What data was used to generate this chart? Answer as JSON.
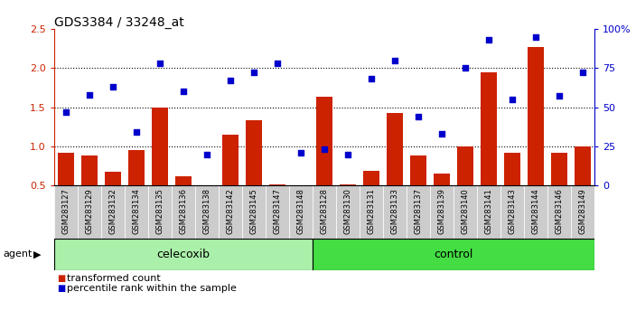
{
  "title": "GDS3384 / 33248_at",
  "samples": [
    "GSM283127",
    "GSM283129",
    "GSM283132",
    "GSM283134",
    "GSM283135",
    "GSM283136",
    "GSM283138",
    "GSM283142",
    "GSM283145",
    "GSM283147",
    "GSM283148",
    "GSM283128",
    "GSM283130",
    "GSM283131",
    "GSM283133",
    "GSM283137",
    "GSM283139",
    "GSM283140",
    "GSM283141",
    "GSM283143",
    "GSM283144",
    "GSM283146",
    "GSM283149"
  ],
  "transformed_count": [
    0.92,
    0.88,
    0.68,
    0.95,
    1.5,
    0.62,
    0.5,
    1.15,
    1.33,
    0.52,
    0.5,
    1.63,
    0.52,
    0.69,
    1.43,
    0.88,
    0.65,
    1.0,
    1.95,
    0.92,
    2.27,
    0.92,
    1.0
  ],
  "percentile_rank": [
    47,
    58,
    63,
    34,
    78,
    60,
    20,
    67,
    72,
    78,
    21,
    23,
    20,
    68,
    80,
    44,
    33,
    75,
    93,
    55,
    95,
    57,
    72
  ],
  "celecoxib_count": 11,
  "control_count": 12,
  "ylim_left": [
    0.5,
    2.5
  ],
  "ylim_right": [
    0,
    100
  ],
  "yticks_left": [
    0.5,
    1.0,
    1.5,
    2.0,
    2.5
  ],
  "yticks_right": [
    0,
    25,
    50,
    75,
    100
  ],
  "ytick_labels_right": [
    "0",
    "25",
    "50",
    "75",
    "100%"
  ],
  "hlines": [
    1.0,
    1.5,
    2.0
  ],
  "bar_color": "#cc2200",
  "dot_color": "#0000cc",
  "celecoxib_color": "#aaf0aa",
  "control_color": "#44dd44",
  "agent_label": "agent",
  "celecoxib_label": "celecoxib",
  "control_label": "control",
  "legend_bar_label": "transformed count",
  "legend_dot_label": "percentile rank within the sample",
  "xtick_bg": "#cccccc",
  "plot_bg": "#ffffff",
  "spine_color": "#000000"
}
